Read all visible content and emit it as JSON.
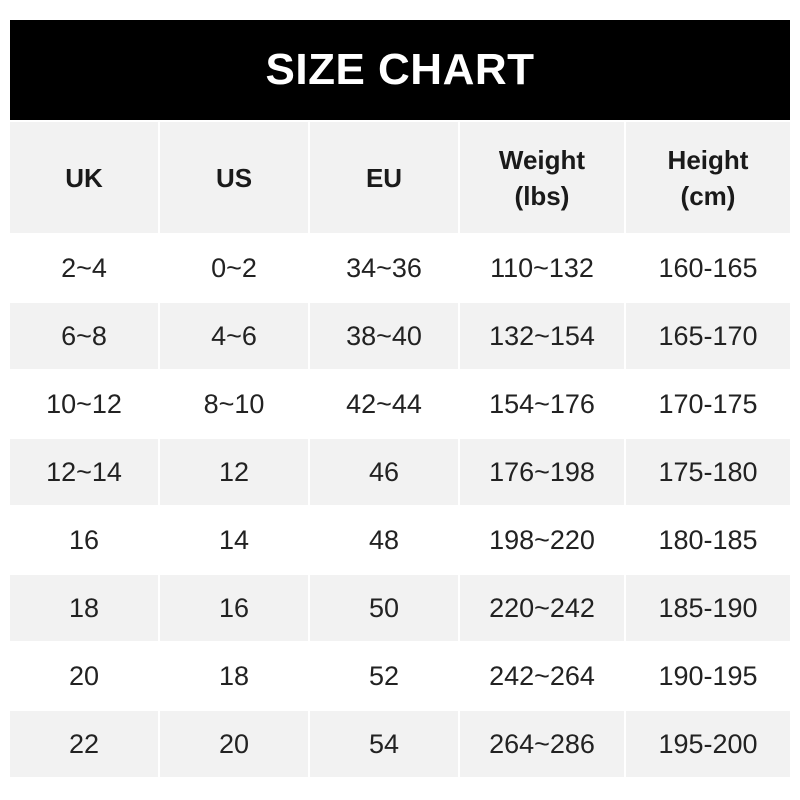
{
  "title": "SIZE CHART",
  "headers": [
    {
      "line1": "UK",
      "line2": ""
    },
    {
      "line1": "US",
      "line2": ""
    },
    {
      "line1": "EU",
      "line2": ""
    },
    {
      "line1": "Weight",
      "line2": "(lbs)"
    },
    {
      "line1": "Height",
      "line2": "(cm)"
    }
  ],
  "rows": [
    [
      "2~4",
      "0~2",
      "34~36",
      "110~132",
      "160-165"
    ],
    [
      "6~8",
      "4~6",
      "38~40",
      "132~154",
      "165-170"
    ],
    [
      "10~12",
      "8~10",
      "42~44",
      "154~176",
      "170-175"
    ],
    [
      "12~14",
      "12",
      "46",
      "176~198",
      "175-180"
    ],
    [
      "16",
      "14",
      "48",
      "198~220",
      "180-185"
    ],
    [
      "18",
      "16",
      "50",
      "220~242",
      "185-190"
    ],
    [
      "20",
      "18",
      "52",
      "242~264",
      "190-195"
    ],
    [
      "22",
      "20",
      "54",
      "264~286",
      "195-200"
    ]
  ],
  "colors": {
    "header_bg": "#000000",
    "stripe": "#f2f2f2",
    "text": "#222222"
  }
}
